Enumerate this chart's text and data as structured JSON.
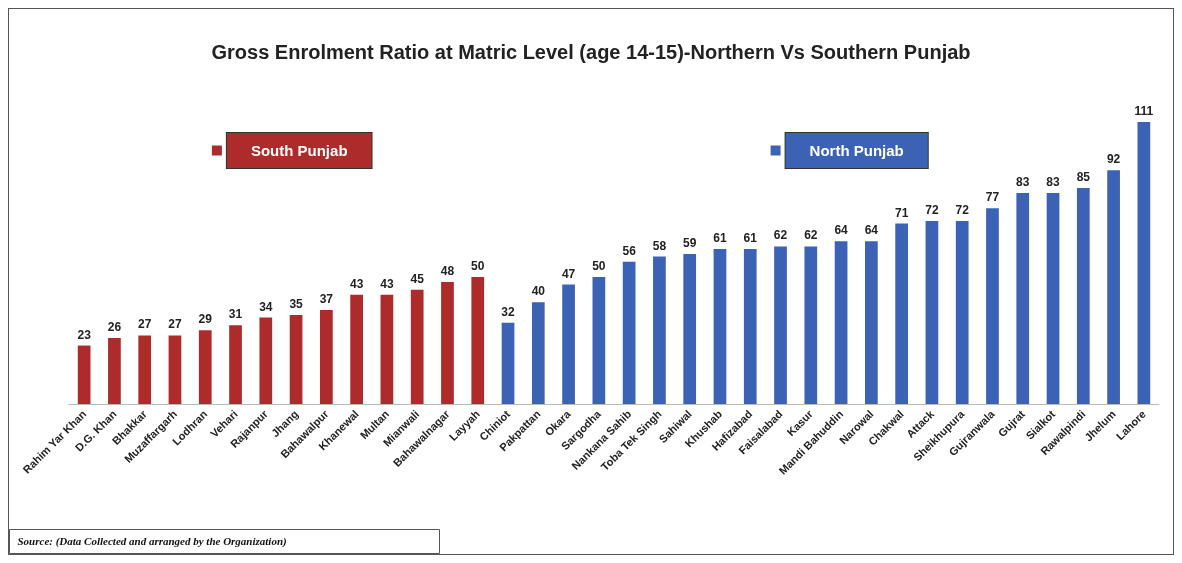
{
  "chart_data": {
    "type": "bar",
    "title": "Gross Enrolment Ratio at Matric Level (age 14-15)-Northern Vs Southern Punjab",
    "categories": [
      "Rahim Yar Khan",
      "D.G. Khan",
      "Bhakkar",
      "Muzaffargarh",
      "Lodhran",
      "Vehari",
      "Rajanpur",
      "Jhang",
      "Bahawalpur",
      "Khanewal",
      "Multan",
      "Mianwali",
      "Bahawalnagar",
      "Layyah",
      "Chiniot",
      "Pakpattan",
      "Okara",
      "Sargodha",
      "Nankana Sahib",
      "Toba Tek Singh",
      "Sahiwal",
      "Khushab",
      "Hafizabad",
      "Faisalabad",
      "Kasur",
      "Mandi Bahuddin",
      "Narowal",
      "Chakwal",
      "Attack",
      "Sheikhupura",
      "Gujranwala",
      "Gujrat",
      "Sialkot",
      "Rawalpindi",
      "Jhelum",
      "Lahore"
    ],
    "series": [
      {
        "name": "South Punjab",
        "color": "#ad2b2b",
        "values": [
          23,
          26,
          27,
          27,
          29,
          31,
          34,
          35,
          37,
          43,
          43,
          45,
          48,
          50,
          null,
          null,
          null,
          null,
          null,
          null,
          null,
          null,
          null,
          null,
          null,
          null,
          null,
          null,
          null,
          null,
          null,
          null,
          null,
          null,
          null,
          null
        ]
      },
      {
        "name": "North Punjab",
        "color": "#3b62b4",
        "values": [
          null,
          null,
          null,
          null,
          null,
          null,
          null,
          null,
          null,
          null,
          null,
          null,
          null,
          null,
          32,
          40,
          47,
          50,
          56,
          58,
          59,
          61,
          61,
          62,
          62,
          64,
          64,
          71,
          72,
          72,
          77,
          83,
          83,
          85,
          92,
          111
        ]
      }
    ],
    "data_labels": true,
    "legend": "top",
    "tick_labels": "x",
    "annotations": [
      "Source: (Data Collected and arranged by the Organization)"
    ]
  }
}
